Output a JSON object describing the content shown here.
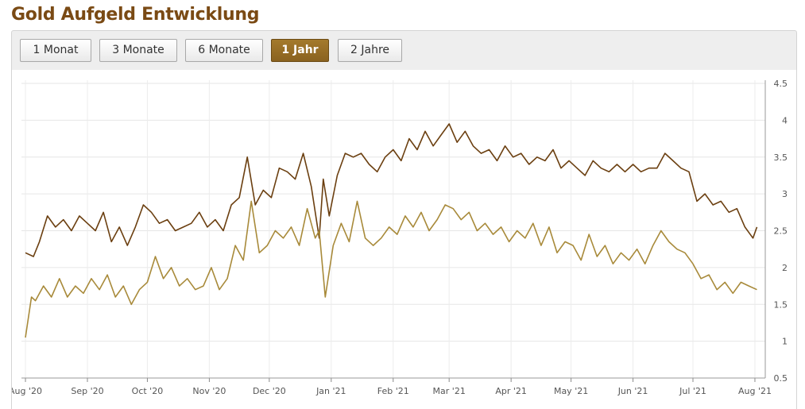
{
  "header": {
    "title": "Gold Aufgeld Entwicklung"
  },
  "range_tabs": [
    {
      "label": "1 Monat",
      "active": false
    },
    {
      "label": "3 Monate",
      "active": false
    },
    {
      "label": "6 Monate",
      "active": false
    },
    {
      "label": "1 Jahr",
      "active": true
    },
    {
      "label": "2 Jahre",
      "active": false
    }
  ],
  "colors": {
    "accent": "#8a6220",
    "series_dark": "#6b3f10",
    "series_light": "#a88a3a"
  },
  "chart_data": {
    "type": "line",
    "title": "",
    "xlabel": "",
    "ylabel": "",
    "ylim": [
      0.5,
      4.5
    ],
    "y_ticks": [
      "0.5",
      "1",
      "1.5",
      "2",
      "2.5",
      "3",
      "3.5",
      "4",
      "4.5"
    ],
    "x_ticks": [
      "Aug '20",
      "Sep '20",
      "Oct '20",
      "Nov '20",
      "Dec '20",
      "Jan '21",
      "Feb '21",
      "Mar '21",
      "Apr '21",
      "May '21",
      "Jun '21",
      "Jul '21",
      "Aug '21"
    ],
    "x_range": [
      "2020-07-30",
      "2021-08-03"
    ],
    "grid": true,
    "legend": "none",
    "series": [
      {
        "x": [
          "2020-08-01",
          "2020-08-05",
          "2020-08-08",
          "2020-08-12",
          "2020-08-16",
          "2020-08-20",
          "2020-08-24",
          "2020-08-28",
          "2020-09-01",
          "2020-09-05",
          "2020-09-09",
          "2020-09-13",
          "2020-09-17",
          "2020-09-21",
          "2020-09-25",
          "2020-09-29",
          "2020-10-03",
          "2020-10-07",
          "2020-10-11",
          "2020-10-15",
          "2020-10-19",
          "2020-10-23",
          "2020-10-27",
          "2020-10-31",
          "2020-11-04",
          "2020-11-08",
          "2020-11-12",
          "2020-11-16",
          "2020-11-20",
          "2020-11-24",
          "2020-11-28",
          "2020-12-02",
          "2020-12-06",
          "2020-12-10",
          "2020-12-14",
          "2020-12-18",
          "2020-12-22",
          "2020-12-26",
          "2020-12-28",
          "2020-12-31",
          "2021-01-04",
          "2021-01-08",
          "2021-01-12",
          "2021-01-16",
          "2021-01-20",
          "2021-01-24",
          "2021-01-28",
          "2021-02-01",
          "2021-02-05",
          "2021-02-09",
          "2021-02-13",
          "2021-02-17",
          "2021-02-21",
          "2021-02-25",
          "2021-03-01",
          "2021-03-05",
          "2021-03-09",
          "2021-03-13",
          "2021-03-17",
          "2021-03-21",
          "2021-03-25",
          "2021-03-29",
          "2021-04-02",
          "2021-04-06",
          "2021-04-10",
          "2021-04-14",
          "2021-04-18",
          "2021-04-22",
          "2021-04-26",
          "2021-04-30",
          "2021-05-04",
          "2021-05-08",
          "2021-05-12",
          "2021-05-16",
          "2021-05-20",
          "2021-05-24",
          "2021-05-28",
          "2021-06-01",
          "2021-06-05",
          "2021-06-09",
          "2021-06-13",
          "2021-06-17",
          "2021-06-21",
          "2021-06-25",
          "2021-06-29",
          "2021-07-03",
          "2021-07-07",
          "2021-07-11",
          "2021-07-15",
          "2021-07-19",
          "2021-07-23",
          "2021-07-27",
          "2021-07-31",
          "2021-08-02"
        ],
        "values": [
          2.2,
          2.15,
          2.35,
          2.7,
          2.55,
          2.65,
          2.5,
          2.7,
          2.6,
          2.5,
          2.75,
          2.35,
          2.55,
          2.3,
          2.55,
          2.85,
          2.75,
          2.6,
          2.65,
          2.5,
          2.55,
          2.6,
          2.75,
          2.55,
          2.65,
          2.5,
          2.85,
          2.95,
          3.5,
          2.85,
          3.05,
          2.95,
          3.35,
          3.3,
          3.2,
          3.55,
          3.1,
          2.4,
          3.2,
          2.7,
          3.25,
          3.55,
          3.5,
          3.55,
          3.4,
          3.3,
          3.5,
          3.6,
          3.45,
          3.75,
          3.6,
          3.85,
          3.65,
          3.8,
          3.95,
          3.7,
          3.85,
          3.65,
          3.55,
          3.6,
          3.45,
          3.65,
          3.5,
          3.55,
          3.4,
          3.5,
          3.45,
          3.6,
          3.35,
          3.45,
          3.35,
          3.25,
          3.45,
          3.35,
          3.3,
          3.4,
          3.3,
          3.4,
          3.3,
          3.35,
          3.35,
          3.55,
          3.45,
          3.35,
          3.3,
          2.9,
          3.0,
          2.85,
          2.9,
          2.75,
          2.8,
          2.55,
          2.4,
          2.55
        ]
      },
      {
        "x": [
          "2020-08-01",
          "2020-08-04",
          "2020-08-06",
          "2020-08-10",
          "2020-08-14",
          "2020-08-18",
          "2020-08-22",
          "2020-08-26",
          "2020-08-30",
          "2020-09-03",
          "2020-09-07",
          "2020-09-11",
          "2020-09-15",
          "2020-09-19",
          "2020-09-23",
          "2020-09-27",
          "2020-10-01",
          "2020-10-05",
          "2020-10-09",
          "2020-10-13",
          "2020-10-17",
          "2020-10-21",
          "2020-10-25",
          "2020-10-29",
          "2020-11-02",
          "2020-11-06",
          "2020-11-10",
          "2020-11-14",
          "2020-11-18",
          "2020-11-22",
          "2020-11-26",
          "2020-11-30",
          "2020-12-04",
          "2020-12-08",
          "2020-12-12",
          "2020-12-16",
          "2020-12-20",
          "2020-12-24",
          "2020-12-26",
          "2020-12-29",
          "2021-01-02",
          "2021-01-06",
          "2021-01-10",
          "2021-01-14",
          "2021-01-18",
          "2021-01-22",
          "2021-01-26",
          "2021-01-30",
          "2021-02-03",
          "2021-02-07",
          "2021-02-11",
          "2021-02-15",
          "2021-02-19",
          "2021-02-23",
          "2021-02-27",
          "2021-03-03",
          "2021-03-07",
          "2021-03-11",
          "2021-03-15",
          "2021-03-19",
          "2021-03-23",
          "2021-03-27",
          "2021-03-31",
          "2021-04-04",
          "2021-04-08",
          "2021-04-12",
          "2021-04-16",
          "2021-04-20",
          "2021-04-24",
          "2021-04-28",
          "2021-05-02",
          "2021-05-06",
          "2021-05-10",
          "2021-05-14",
          "2021-05-18",
          "2021-05-22",
          "2021-05-26",
          "2021-05-30",
          "2021-06-03",
          "2021-06-07",
          "2021-06-11",
          "2021-06-15",
          "2021-06-19",
          "2021-06-23",
          "2021-06-27",
          "2021-07-01",
          "2021-07-05",
          "2021-07-09",
          "2021-07-13",
          "2021-07-17",
          "2021-07-21",
          "2021-07-25",
          "2021-07-29",
          "2021-08-02"
        ],
        "values": [
          1.05,
          1.6,
          1.55,
          1.75,
          1.6,
          1.85,
          1.6,
          1.75,
          1.65,
          1.85,
          1.7,
          1.9,
          1.6,
          1.75,
          1.5,
          1.7,
          1.8,
          2.15,
          1.85,
          2.0,
          1.75,
          1.85,
          1.7,
          1.75,
          2.0,
          1.7,
          1.85,
          2.3,
          2.1,
          2.9,
          2.2,
          2.3,
          2.5,
          2.4,
          2.55,
          2.3,
          2.8,
          2.4,
          2.5,
          1.6,
          2.3,
          2.6,
          2.35,
          2.9,
          2.4,
          2.3,
          2.4,
          2.55,
          2.45,
          2.7,
          2.55,
          2.75,
          2.5,
          2.65,
          2.85,
          2.8,
          2.65,
          2.75,
          2.5,
          2.6,
          2.45,
          2.55,
          2.35,
          2.5,
          2.4,
          2.6,
          2.3,
          2.55,
          2.2,
          2.35,
          2.3,
          2.1,
          2.45,
          2.15,
          2.3,
          2.05,
          2.2,
          2.1,
          2.25,
          2.05,
          2.3,
          2.5,
          2.35,
          2.25,
          2.2,
          2.05,
          1.85,
          1.9,
          1.7,
          1.8,
          1.65,
          1.8,
          1.75,
          1.7
        ]
      }
    ]
  }
}
